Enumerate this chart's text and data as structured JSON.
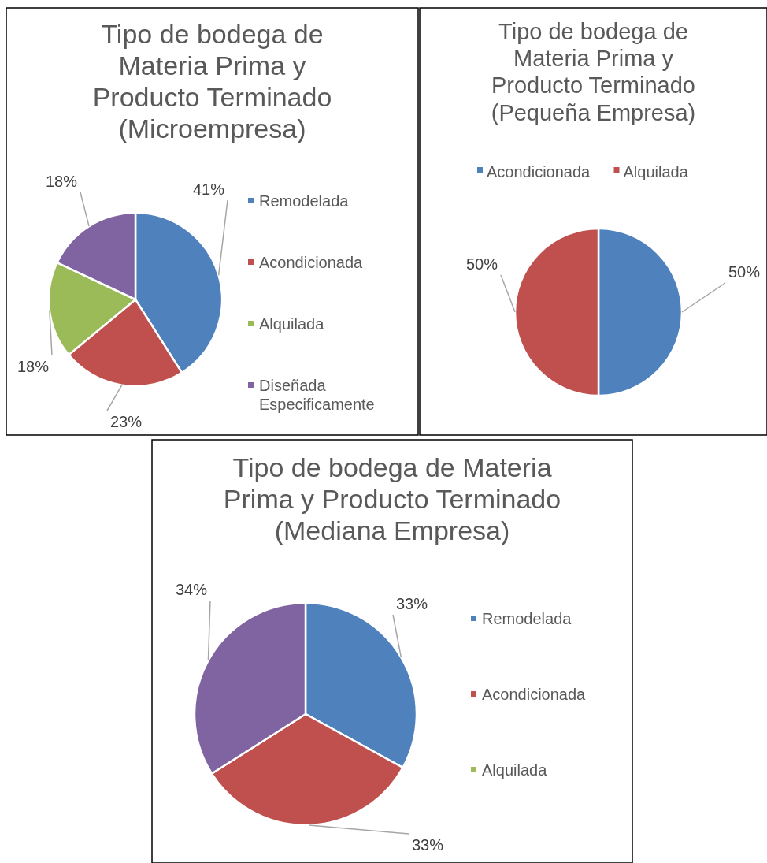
{
  "chart_data": [
    {
      "type": "pie",
      "title": "Tipo de bodega de Materia Prima y Producto Terminado (Microempresa)",
      "categories": [
        "Remodelada",
        "Acondicionada",
        "Alquilada",
        "Diseñada Especificamente"
      ],
      "values": [
        41,
        23,
        18,
        18
      ],
      "value_labels": [
        "41%",
        "23%",
        "18%",
        "18%"
      ],
      "colors": [
        "#4f81bd",
        "#c0504d",
        "#9bbb59",
        "#8064a2"
      ],
      "legend": "right"
    },
    {
      "type": "pie",
      "title": "Tipo de bodega de Materia Prima y Producto Terminado (Pequeña Empresa)",
      "categories": [
        "Acondicionada",
        "Alquilada"
      ],
      "values": [
        50,
        50
      ],
      "value_labels": [
        "50%",
        "50%"
      ],
      "colors": [
        "#4f81bd",
        "#c0504d"
      ],
      "legend": "top"
    },
    {
      "type": "pie",
      "title": "Tipo de bodega de Materia Prima y Producto Terminado (Mediana Empresa)",
      "categories": [
        "Remodelada",
        "Acondicionada",
        "Alquilada",
        null
      ],
      "values": [
        33,
        33,
        null,
        34
      ],
      "value_labels": [
        "33%",
        "33%",
        null,
        "34%"
      ],
      "colors": [
        "#4f81bd",
        "#c0504d",
        "#9bbb59",
        "#8064a2"
      ],
      "legend": "right"
    }
  ]
}
